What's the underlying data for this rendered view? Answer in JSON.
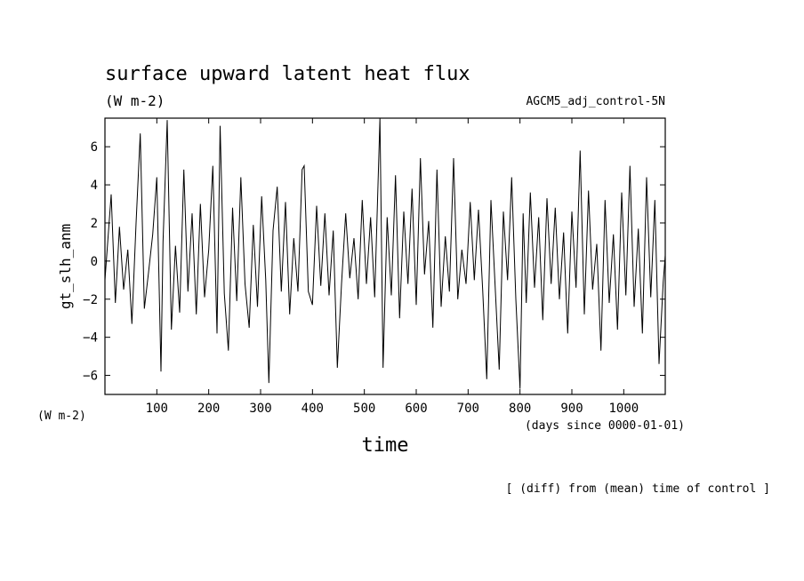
{
  "chart_data": {
    "type": "line",
    "title": "surface upward latent heat flux",
    "units": "(W m-2)",
    "run_label": "AGCM5_adj_control-5N",
    "ylabel": "gt_slh_anm",
    "xlabel": "time",
    "y_units": "(W m-2)",
    "x_units": "(days since 0000-01-01)",
    "footnote": "[ (diff) from (mean) time of control ]",
    "xlim": [
      0,
      1080
    ],
    "ylim": [
      -7,
      7.5
    ],
    "x_ticks": [
      100,
      200,
      300,
      400,
      500,
      600,
      700,
      800,
      900,
      1000
    ],
    "y_ticks": [
      -6,
      -4,
      -2,
      0,
      2,
      4,
      6
    ],
    "x_tick_labels": [
      "100",
      "200",
      "300",
      "400",
      "500",
      "600",
      "700",
      "800",
      "900",
      "1000"
    ],
    "y_tick_labels": [
      "−6",
      "−4",
      "−2",
      "0",
      "2",
      "4",
      "6"
    ],
    "grid": false,
    "series": [
      {
        "x": [
          0,
          12,
          20,
          28,
          36,
          44,
          52,
          60,
          68,
          76,
          84,
          92,
          100,
          108,
          112,
          120,
          128,
          136,
          144,
          152,
          160,
          168,
          176,
          184,
          192,
          200,
          208,
          216,
          222,
          230,
          238,
          246,
          254,
          262,
          270,
          278,
          286,
          294,
          302,
          310,
          316,
          324,
          332,
          340,
          348,
          356,
          364,
          372,
          380,
          384,
          392,
          400,
          408,
          416,
          424,
          432,
          440,
          448,
          456,
          464,
          472,
          480,
          488,
          496,
          504,
          512,
          520,
          530,
          536,
          544,
          552,
          560,
          568,
          576,
          584,
          592,
          600,
          608,
          616,
          624,
          632,
          640,
          648,
          656,
          664,
          672,
          680,
          688,
          696,
          704,
          712,
          720,
          728,
          736,
          744,
          752,
          760,
          768,
          776,
          784,
          792,
          800,
          806,
          812,
          820,
          828,
          836,
          844,
          852,
          860,
          868,
          876,
          884,
          892,
          900,
          908,
          916,
          924,
          932,
          940,
          948,
          956,
          964,
          972,
          980,
          988,
          996,
          1004,
          1012,
          1020,
          1028,
          1036,
          1044,
          1052,
          1060,
          1068,
          1076,
          1080
        ],
        "y": [
          -1.0,
          3.5,
          -2.2,
          1.8,
          -1.5,
          0.6,
          -3.3,
          2.0,
          6.7,
          -2.5,
          -0.6,
          1.4,
          4.4,
          -5.8,
          1.0,
          7.4,
          -3.6,
          0.8,
          -2.7,
          4.8,
          -1.6,
          2.5,
          -2.8,
          3.0,
          -1.9,
          0.6,
          5.0,
          -3.8,
          7.1,
          -1.7,
          -4.7,
          2.8,
          -2.1,
          4.4,
          -1.2,
          -3.5,
          1.9,
          -2.4,
          3.4,
          -1.0,
          -6.4,
          1.6,
          3.9,
          -1.6,
          3.1,
          -2.8,
          1.2,
          -1.6,
          4.8,
          5.0,
          -1.6,
          -2.3,
          2.9,
          -1.3,
          2.5,
          -1.8,
          1.6,
          -5.6,
          -1.2,
          2.5,
          -0.9,
          1.2,
          -2.0,
          3.2,
          -1.2,
          2.3,
          -1.9,
          7.5,
          -5.6,
          2.3,
          -1.8,
          4.5,
          -3.0,
          2.6,
          -1.2,
          3.8,
          -2.3,
          5.4,
          -0.7,
          2.1,
          -3.5,
          4.8,
          -2.4,
          1.3,
          -1.6,
          5.4,
          -2.0,
          0.6,
          -1.2,
          3.1,
          -1.0,
          2.7,
          -1.5,
          -6.2,
          3.2,
          -1.3,
          -5.7,
          2.6,
          -1.0,
          4.4,
          -2.0,
          -6.7,
          2.5,
          -2.2,
          3.6,
          -1.4,
          2.3,
          -3.1,
          3.3,
          -1.2,
          2.8,
          -2.0,
          1.5,
          -3.8,
          2.6,
          -1.4,
          5.8,
          -2.8,
          3.7,
          -1.5,
          0.9,
          -4.7,
          3.2,
          -2.2,
          1.4,
          -3.6,
          3.6,
          -1.8,
          5.0,
          -2.4,
          1.7,
          -3.8,
          4.4,
          -1.9,
          3.2,
          -5.4,
          -1.1,
          0.3
        ]
      }
    ]
  }
}
